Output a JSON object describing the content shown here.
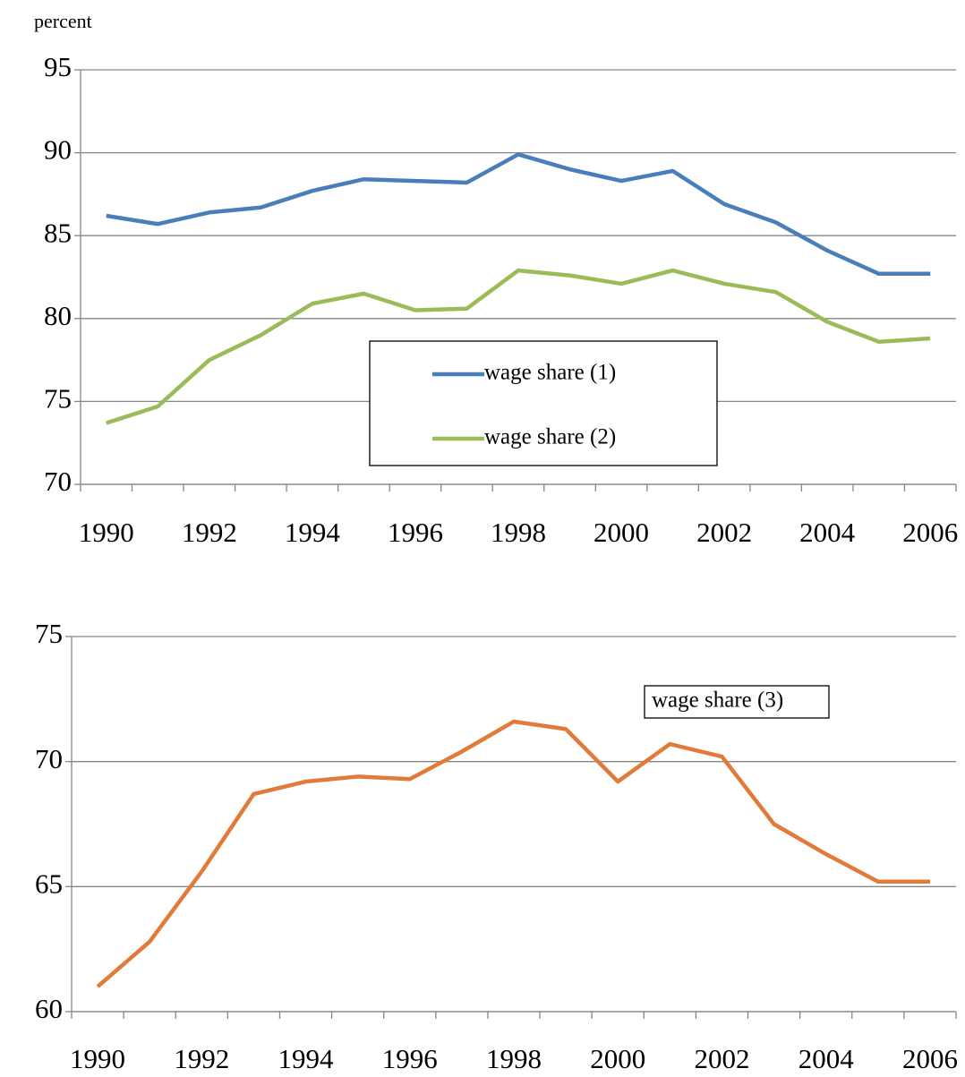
{
  "chart_data": [
    {
      "type": "line",
      "y_label": "percent",
      "categories": [
        "1990",
        null,
        "1992",
        null,
        "1994",
        null,
        "1996",
        null,
        "1998",
        null,
        "2000",
        null,
        "2002",
        null,
        "2004",
        null,
        "2006"
      ],
      "series": [
        {
          "name": "wage share (1)",
          "color": "#4a7ebb",
          "values": [
            86.2,
            85.7,
            86.4,
            86.7,
            87.7,
            88.4,
            88.3,
            88.2,
            89.9,
            89.0,
            88.3,
            88.9,
            86.9,
            85.8,
            84.1,
            82.7,
            82.7
          ]
        },
        {
          "name": "wage share (2)",
          "color": "#9bbb59",
          "values": [
            73.7,
            74.7,
            77.5,
            79.0,
            80.9,
            81.5,
            80.5,
            80.6,
            82.9,
            82.6,
            82.1,
            82.9,
            82.1,
            81.6,
            79.8,
            78.6,
            78.8
          ]
        }
      ],
      "ylim": [
        70,
        95
      ],
      "yticks": [
        70,
        75,
        80,
        85,
        90,
        95
      ],
      "grid": true
    },
    {
      "type": "line",
      "categories": [
        "1990",
        null,
        "1992",
        null,
        "1994",
        null,
        "1996",
        null,
        "1998",
        null,
        "2000",
        null,
        "2002",
        null,
        "2004",
        null,
        "2006"
      ],
      "series": [
        {
          "name": "wage share (3)",
          "color": "#e07b39",
          "values": [
            61.0,
            62.8,
            65.6,
            68.7,
            69.2,
            69.4,
            69.3,
            70.4,
            71.6,
            71.3,
            69.2,
            70.7,
            70.2,
            67.5,
            66.3,
            65.2,
            65.2
          ]
        }
      ],
      "ylim": [
        60,
        75
      ],
      "yticks": [
        60,
        65,
        70,
        75
      ],
      "grid": true
    }
  ]
}
